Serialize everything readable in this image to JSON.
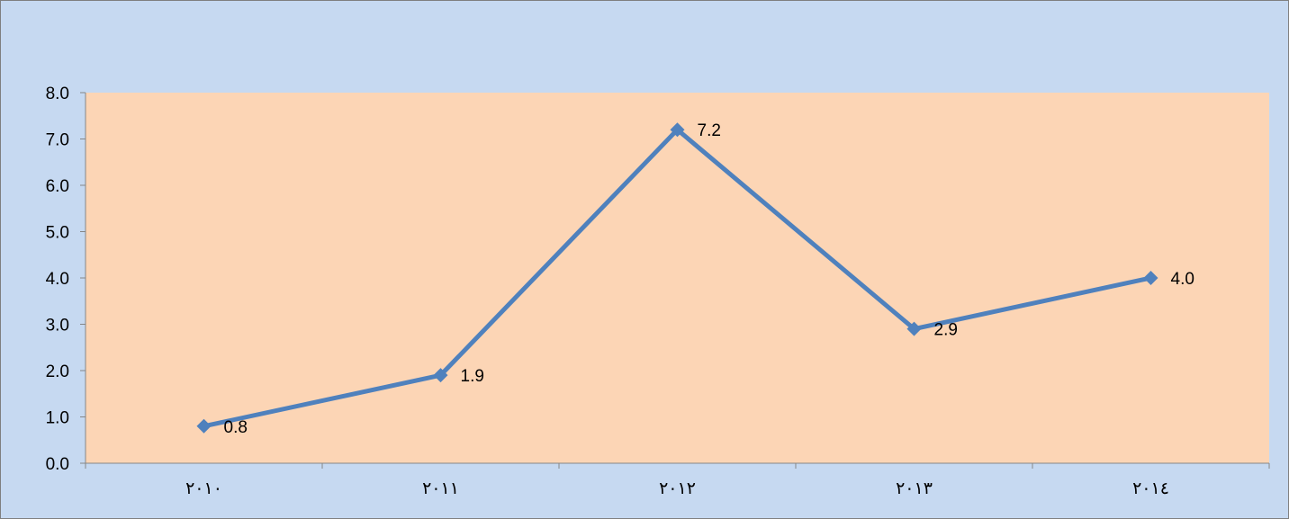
{
  "colors": {
    "chart_area_background": "#c6d9f1",
    "chart_border": "#7f7f7f",
    "plot_area_background": "#fcd5b5",
    "axis_line": "#868686",
    "series_line": "#4f81bd",
    "marker": "#4f81bd",
    "text": "#000000"
  },
  "chart_data": {
    "type": "line",
    "title": "",
    "xlabel": "",
    "ylabel": "",
    "categories": [
      "٢٠١٠",
      "٢٠١١",
      "٢٠١٢",
      "٢٠١٣",
      "٢٠١٤"
    ],
    "series": [
      {
        "values": [
          0.8,
          1.9,
          7.2,
          2.9,
          4.0
        ],
        "data_labels": [
          "0.8",
          "1.9",
          "7.2",
          "2.9",
          "4.0"
        ],
        "marker": "diamond"
      }
    ],
    "ylim": [
      0,
      8
    ],
    "yticks": [
      0,
      1,
      2,
      3,
      4,
      5,
      6,
      7,
      8
    ],
    "ytick_labels": [
      "0.0",
      "1.0",
      "2.0",
      "3.0",
      "4.0",
      "5.0",
      "6.0",
      "7.0",
      "8.0"
    ],
    "grid": false,
    "legend": "none",
    "data_labels_position": "right"
  }
}
